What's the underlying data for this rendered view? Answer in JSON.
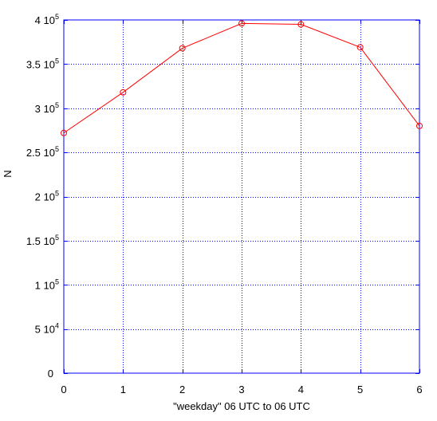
{
  "chart_data": {
    "type": "line",
    "title": "",
    "xlabel": "\"weekday\" 06 UTC to 06 UTC",
    "ylabel": "N",
    "x": [
      0,
      1,
      2,
      3,
      4,
      5,
      6
    ],
    "series": [
      {
        "values": [
          272000,
          318000,
          368000,
          396000,
          395000,
          369000,
          280000
        ],
        "color": "#ff0000",
        "marker": "circle"
      }
    ],
    "xlim": [
      0,
      6
    ],
    "ylim": [
      0,
      400000
    ],
    "xticks": [
      0,
      1,
      2,
      3,
      4,
      5,
      6
    ],
    "yticks": [
      {
        "value": 0,
        "mantissa": "0",
        "exp": ""
      },
      {
        "value": 50000,
        "mantissa": "5 10",
        "exp": "4"
      },
      {
        "value": 100000,
        "mantissa": "1 10",
        "exp": "5"
      },
      {
        "value": 150000,
        "mantissa": "1.5 10",
        "exp": "5"
      },
      {
        "value": 200000,
        "mantissa": "2 10",
        "exp": "5"
      },
      {
        "value": 250000,
        "mantissa": "2.5 10",
        "exp": "5"
      },
      {
        "value": 300000,
        "mantissa": "3 10",
        "exp": "5"
      },
      {
        "value": 350000,
        "mantissa": "3.5 10",
        "exp": "5"
      },
      {
        "value": 400000,
        "mantissa": "4 10",
        "exp": "5"
      }
    ],
    "grid": true,
    "grid_color": "#0000ff",
    "axes_color": "#0000ff"
  }
}
